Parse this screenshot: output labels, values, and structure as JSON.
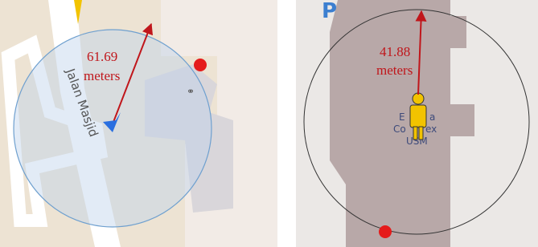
{
  "left_panel": {
    "distance": "61.69",
    "unit": "meters",
    "street": "Jalan Masjid"
  },
  "right_panel": {
    "distance": "41.88",
    "unit": "meters",
    "poi_label": [
      "E",
      "a",
      "Co",
      "ex",
      "USM"
    ],
    "map_letter": "P"
  }
}
